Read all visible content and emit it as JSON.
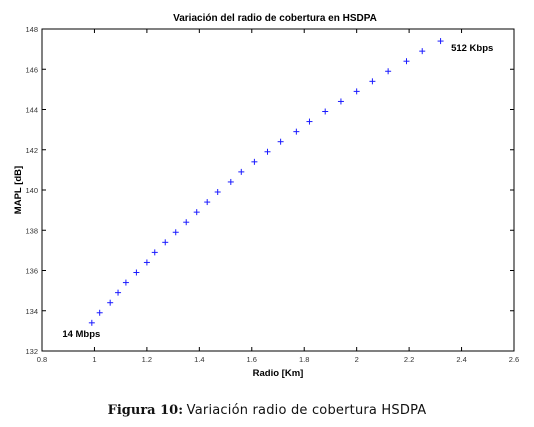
{
  "chart_data": {
    "type": "scatter",
    "title": "Variación del radio de cobertura en HSDPA",
    "xlabel": "Radio [Km]",
    "ylabel": "MAPL [dB]",
    "xlim": [
      0.8,
      2.6
    ],
    "ylim": [
      132,
      148
    ],
    "xticks": [
      "0.8",
      "1",
      "1.2",
      "1.4",
      "1.6",
      "1.8",
      "2",
      "2.2",
      "2.4",
      "2.6"
    ],
    "yticks": [
      "132",
      "134",
      "136",
      "138",
      "140",
      "142",
      "144",
      "146",
      "148"
    ],
    "grid": false,
    "marker": "+",
    "marker_color": "#1a1aff",
    "series": [
      {
        "x": [
          0.99,
          1.02,
          1.06,
          1.09,
          1.12,
          1.16,
          1.2,
          1.23,
          1.27,
          1.31,
          1.35,
          1.39,
          1.43,
          1.47,
          1.52,
          1.56,
          1.61,
          1.66,
          1.71,
          1.77,
          1.82,
          1.88,
          1.94,
          2.0,
          2.06,
          2.12,
          2.19,
          2.25,
          2.32
        ],
        "y": [
          133.4,
          133.9,
          134.4,
          134.9,
          135.4,
          135.9,
          136.4,
          136.9,
          137.4,
          137.9,
          138.4,
          138.9,
          139.4,
          139.9,
          140.4,
          140.9,
          141.4,
          141.9,
          142.4,
          142.9,
          143.4,
          143.9,
          144.4,
          144.9,
          145.4,
          145.9,
          146.4,
          146.9,
          147.4
        ]
      }
    ],
    "annotations": [
      {
        "text": "14 Mbps",
        "x": 0.95,
        "y": 132.7
      },
      {
        "text": "512 Kbps",
        "x": 2.36,
        "y": 146.9
      }
    ]
  },
  "caption": {
    "label": "Figura 10:",
    "text": "Variación radio de cobertura HSDPA"
  }
}
